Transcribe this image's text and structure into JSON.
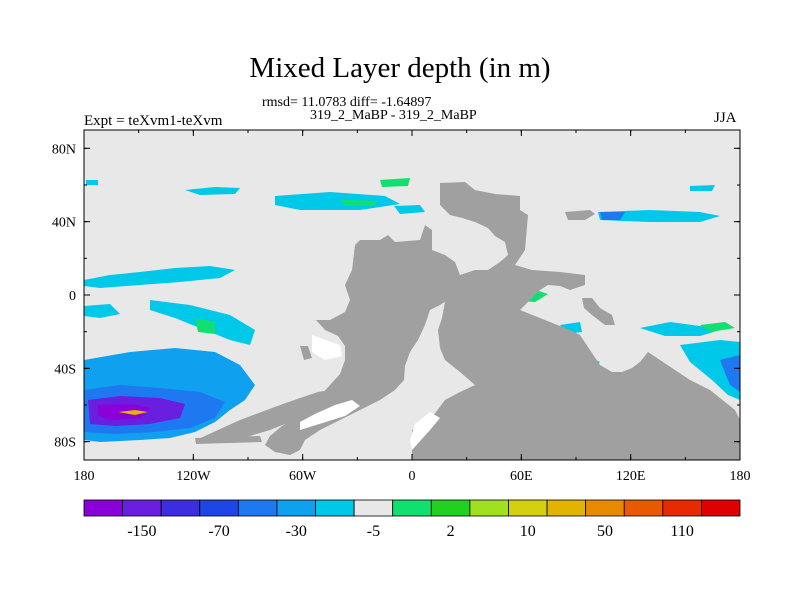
{
  "chart_data": {
    "type": "heatmap",
    "title": "Mixed Layer depth (in m)",
    "subtitle_stats": "rmsd= 11.0783 diff= -1.64897",
    "subtitle_cases": "319_2_MaBP - 319_2_MaBP",
    "left_label": "Expt = teXvm1-teXvm",
    "right_label": "JJA",
    "x_ticks": [
      "180",
      "120W",
      "60W",
      "0",
      "60E",
      "120E",
      "180"
    ],
    "y_ticks": [
      "80N",
      "40N",
      "0",
      "40S",
      "80S"
    ],
    "xlim": [
      -180,
      180
    ],
    "ylim": [
      -90,
      90
    ],
    "grid": false,
    "colorbar": {
      "colors": [
        "#8a00d8",
        "#6a1ee0",
        "#3c2ee0",
        "#1e46e6",
        "#1e78f0",
        "#10a0f0",
        "#00c8e8",
        "#e8e8e8",
        "#10e070",
        "#22d020",
        "#a0e020",
        "#d4d010",
        "#e0b400",
        "#e88a00",
        "#e85a00",
        "#e82a00",
        "#e00000"
      ],
      "labels": [
        "-150",
        "-70",
        "-30",
        "-5",
        "2",
        "10",
        "50",
        "110"
      ]
    },
    "colors": {
      "land": "#a0a0a0",
      "background_field": "#e8e8e8"
    }
  }
}
